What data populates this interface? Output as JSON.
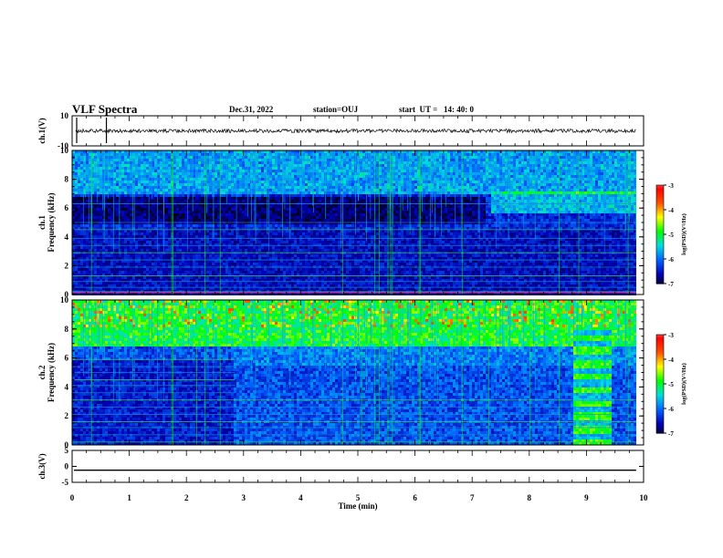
{
  "header": {
    "title": "VLF Spectra",
    "date": "Dec.31, 2022",
    "station": "station=OUJ",
    "start": "start  UT =   14: 40: 0"
  },
  "chart_data": [
    {
      "type": "line",
      "panel": "ch1-waveform",
      "ylabel": "ch.1(V)",
      "ylim": [
        -10,
        10
      ],
      "yticks": [
        "10",
        "-10"
      ],
      "trace_level": 0,
      "spikes_x_min": [
        0.08,
        0.6
      ],
      "xlim": [
        0,
        10
      ]
    },
    {
      "type": "heatmap",
      "panel": "ch1-spectrogram",
      "ylabel": "ch.1\nFrequency (kHz)",
      "xlim": [
        0,
        10
      ],
      "ylim": [
        0,
        10
      ],
      "yticks": [
        "0",
        "2",
        "4",
        "6",
        "8",
        "10"
      ],
      "data_end_min": 9.87,
      "colorbar": {
        "label": "log(PSD)(V²/Hz)",
        "ticks": [
          "-3",
          "-4",
          "-5",
          "-6",
          "-7"
        ],
        "range": [
          -7,
          -3
        ]
      },
      "features": [
        {
          "desc": "elevated band",
          "t": [
            7.3,
            9.87
          ],
          "f": [
            5.8,
            7.2
          ]
        }
      ]
    },
    {
      "type": "heatmap",
      "panel": "ch2-spectrogram",
      "ylabel": "ch.2\nFrequency (kHz)",
      "xlim": [
        0,
        10
      ],
      "ylim": [
        0,
        10
      ],
      "yticks": [
        "0",
        "2",
        "4",
        "6",
        "8",
        "10"
      ],
      "data_end_min": 9.87,
      "colorbar": {
        "label": "log(PSD)(V²/Hz)",
        "ticks": [
          "-3",
          "-4",
          "-5",
          "-6",
          "-7"
        ],
        "range": [
          -7,
          -3
        ]
      },
      "features": [
        {
          "desc": "broadband interference",
          "t": [
            8.75,
            9.4
          ],
          "f": [
            0,
            8.0
          ]
        },
        {
          "desc": "strong high-frequency noise",
          "t": [
            0,
            9.87
          ],
          "f": [
            6.5,
            10
          ]
        }
      ]
    },
    {
      "type": "line",
      "panel": "ch3-waveform",
      "ylabel": "ch.3(V)",
      "ylim": [
        -5,
        5
      ],
      "yticks": [
        "5",
        "0",
        "-5"
      ],
      "trace_level": -1.2,
      "xlim": [
        0,
        10
      ]
    }
  ],
  "xaxis": {
    "label": "Time (min)",
    "ticks": [
      "0",
      "1",
      "2",
      "3",
      "4",
      "5",
      "6",
      "7",
      "8",
      "9",
      "10"
    ]
  },
  "colors": {
    "background": "#00005a",
    "trace": "#000000",
    "colormap": [
      "#000000",
      "#0000b4",
      "#0064ff",
      "#00dcdc",
      "#00ff00",
      "#ffff00",
      "#ff5000",
      "#ff0000",
      "#ffffff"
    ]
  }
}
